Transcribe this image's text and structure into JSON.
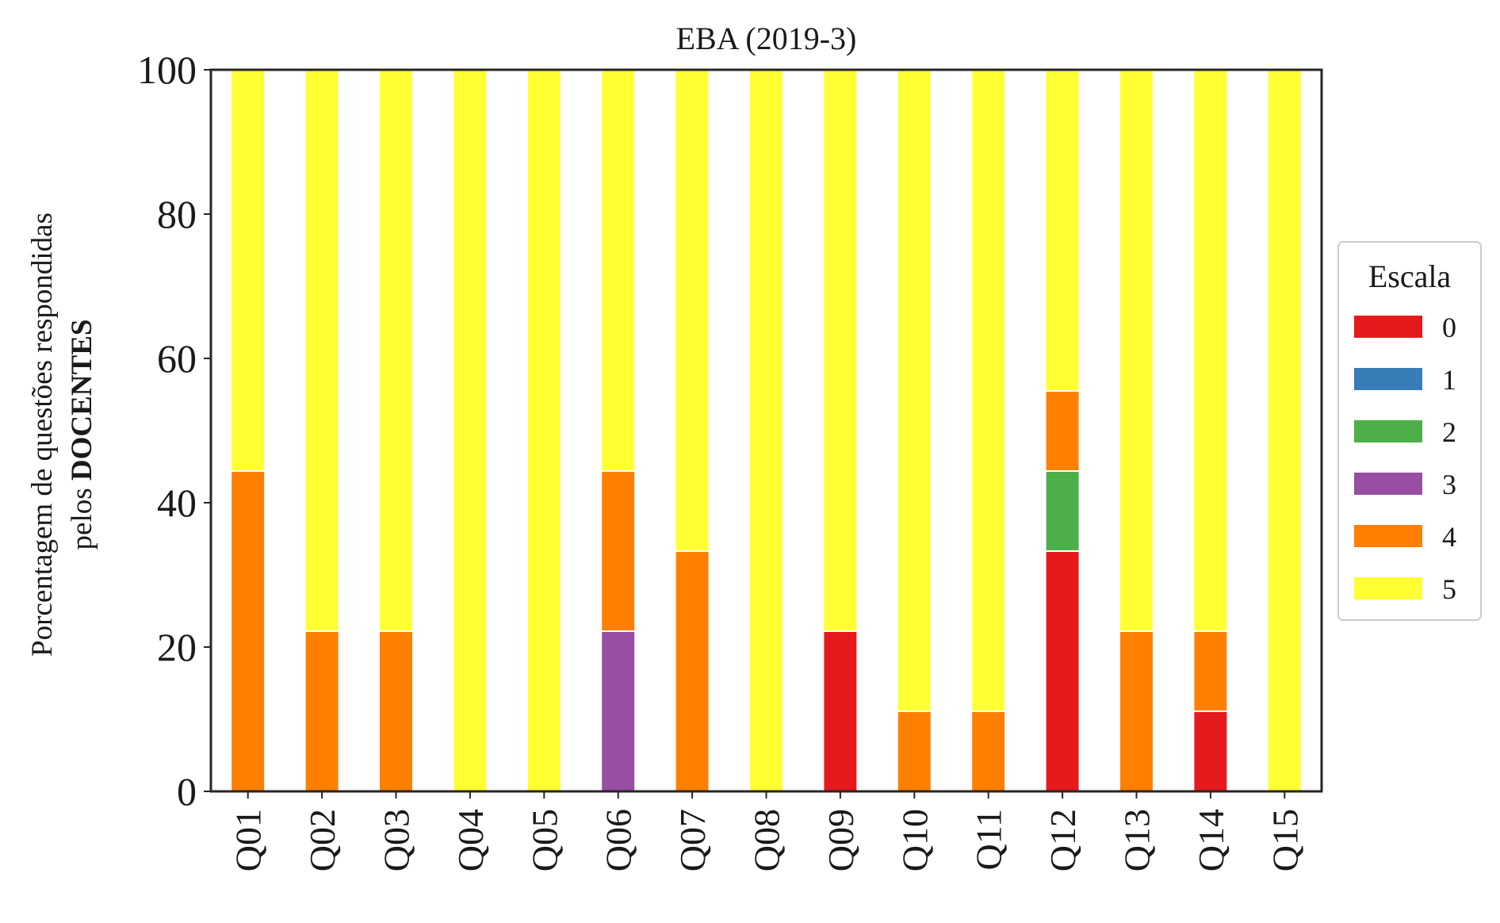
{
  "chart_data": {
    "type": "bar",
    "stacked": true,
    "title": "EBA (2019-3)",
    "ylabel": "Porcentagem de questões respondidas",
    "ylabel_line2_prefix": "pelos ",
    "ylabel_line2_bold": "DOCENTES",
    "xlabel": "",
    "ylim": [
      0,
      100
    ],
    "yticks": [
      "0",
      "20",
      "40",
      "60",
      "80",
      "100"
    ],
    "categories": [
      "Q01",
      "Q02",
      "Q03",
      "Q04",
      "Q05",
      "Q06",
      "Q07",
      "Q08",
      "Q09",
      "Q10",
      "Q11",
      "Q12",
      "Q13",
      "Q14",
      "Q15"
    ],
    "legend": {
      "title": "Escala",
      "placement": "right"
    },
    "grid": false,
    "series": [
      {
        "name": "0",
        "color": "#e41a1c",
        "values": [
          0,
          0,
          0,
          0,
          0,
          0,
          0,
          0,
          22.2,
          0,
          0,
          33.3,
          0,
          11.1,
          0
        ]
      },
      {
        "name": "1",
        "color": "#377eb8",
        "values": [
          0,
          0,
          0,
          0,
          0,
          0,
          0,
          0,
          0,
          0,
          0,
          0,
          0,
          0,
          0
        ]
      },
      {
        "name": "2",
        "color": "#4daf4a",
        "values": [
          0,
          0,
          0,
          0,
          0,
          0,
          0,
          0,
          0,
          0,
          0,
          11.1,
          0,
          0,
          0
        ]
      },
      {
        "name": "3",
        "color": "#984ea3",
        "values": [
          0,
          0,
          0,
          0,
          0,
          22.2,
          0,
          0,
          0,
          0,
          0,
          0,
          0,
          0,
          0
        ]
      },
      {
        "name": "4",
        "color": "#ff7f00",
        "values": [
          44.4,
          22.2,
          22.2,
          0,
          0,
          22.2,
          33.3,
          0,
          0,
          11.1,
          11.1,
          11.1,
          22.2,
          11.1,
          0
        ]
      },
      {
        "name": "5",
        "color": "#ffff33",
        "values": [
          55.6,
          77.8,
          77.8,
          100,
          100,
          55.6,
          66.7,
          100,
          77.8,
          88.9,
          88.9,
          44.4,
          77.8,
          77.8,
          100
        ]
      }
    ]
  }
}
